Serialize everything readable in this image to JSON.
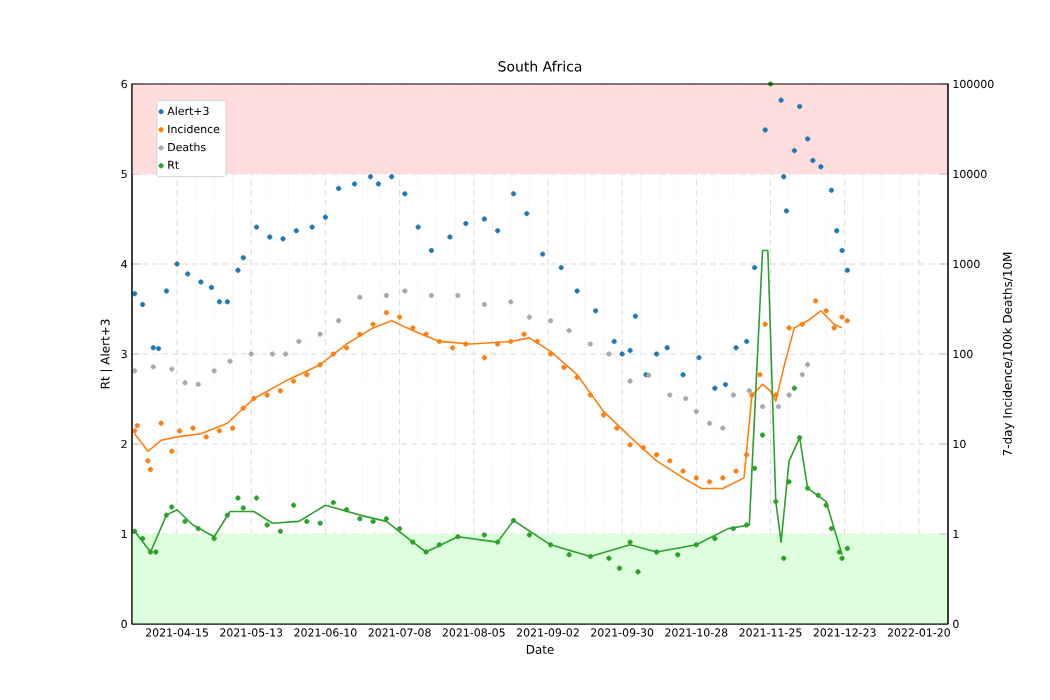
{
  "chart_data": {
    "type": "scatter",
    "title": "South Africa",
    "xlabel": "Date",
    "ylabel": "Rt | Alert+3",
    "y2label": "7-day Incidence/100k Deaths/10M",
    "xlim": [
      "2021-03-29",
      "2022-01-31"
    ],
    "xticks": [
      "2021-04-15",
      "2021-05-13",
      "2021-06-10",
      "2021-07-08",
      "2021-08-05",
      "2021-09-02",
      "2021-09-30",
      "2021-10-28",
      "2021-11-25",
      "2021-12-23",
      "2022-01-20"
    ],
    "ylim": [
      0,
      6
    ],
    "yticks": [
      0,
      1,
      2,
      3,
      4,
      5,
      6
    ],
    "y2lim": [
      0,
      100000
    ],
    "y2ticks": [
      0,
      1,
      10,
      100,
      1000,
      10000,
      100000
    ],
    "log": "y2",
    "grid": true,
    "legend": "top left",
    "bands": [
      {
        "axis": "y",
        "from": 5,
        "to": 6,
        "color": "#ffdddd"
      },
      {
        "axis": "y",
        "from": 0,
        "to": 1,
        "color": "#ddffdd"
      }
    ],
    "series": [
      {
        "name": "Alert+3",
        "marker": "circle",
        "color": "#1f77b4",
        "x": [
          "2021-03-30",
          "2021-04-02",
          "2021-04-06",
          "2021-04-08",
          "2021-04-11",
          "2021-04-15",
          "2021-04-19",
          "2021-04-24",
          "2021-04-28",
          "2021-05-01",
          "2021-05-04",
          "2021-05-08",
          "2021-05-10",
          "2021-05-15",
          "2021-05-20",
          "2021-05-25",
          "2021-05-30",
          "2021-06-05",
          "2021-06-10",
          "2021-06-15",
          "2021-06-21",
          "2021-06-27",
          "2021-06-30",
          "2021-07-05",
          "2021-07-10",
          "2021-07-15",
          "2021-07-20",
          "2021-07-27",
          "2021-08-02",
          "2021-08-09",
          "2021-08-14",
          "2021-08-20",
          "2021-08-25",
          "2021-08-31",
          "2021-09-07",
          "2021-09-13",
          "2021-09-20",
          "2021-09-27",
          "2021-09-30",
          "2021-10-03",
          "2021-10-05",
          "2021-10-09",
          "2021-10-13",
          "2021-10-17",
          "2021-10-23",
          "2021-10-29",
          "2021-11-04",
          "2021-11-08",
          "2021-11-12",
          "2021-11-16",
          "2021-11-19",
          "2021-11-23",
          "2021-11-29",
          "2021-11-30",
          "2021-12-01",
          "2021-12-04",
          "2021-12-06",
          "2021-12-09",
          "2021-12-11",
          "2021-12-14",
          "2021-12-18",
          "2021-12-20",
          "2021-12-22",
          "2021-12-24"
        ],
        "values": [
          3.67,
          3.55,
          3.07,
          3.06,
          3.7,
          4.0,
          3.89,
          3.8,
          3.74,
          3.58,
          3.58,
          3.93,
          4.07,
          4.41,
          4.3,
          4.28,
          4.37,
          4.41,
          4.52,
          4.84,
          4.89,
          4.97,
          4.89,
          4.97,
          4.78,
          4.41,
          4.15,
          4.3,
          4.45,
          4.5,
          4.37,
          4.78,
          4.56,
          4.11,
          3.96,
          3.7,
          3.48,
          3.14,
          3.0,
          3.04,
          3.42,
          2.77,
          3.0,
          3.07,
          2.77,
          2.96,
          2.62,
          2.66,
          3.07,
          3.14,
          3.96,
          5.49,
          5.82,
          4.97,
          4.59,
          5.26,
          5.75,
          5.39,
          5.15,
          5.08,
          4.82,
          4.37,
          4.15,
          3.93
        ]
      },
      {
        "name": "Incidence",
        "marker": "circle",
        "color": "#ff7f0e",
        "axis": "y2",
        "x": [
          "2021-03-30",
          "2021-03-31",
          "2021-04-04",
          "2021-04-05",
          "2021-04-09",
          "2021-04-13",
          "2021-04-16",
          "2021-04-21",
          "2021-04-26",
          "2021-05-01",
          "2021-05-06",
          "2021-05-10",
          "2021-05-14",
          "2021-05-19",
          "2021-05-24",
          "2021-05-29",
          "2021-06-03",
          "2021-06-08",
          "2021-06-13",
          "2021-06-18",
          "2021-06-23",
          "2021-06-28",
          "2021-07-03",
          "2021-07-08",
          "2021-07-13",
          "2021-07-18",
          "2021-07-23",
          "2021-07-28",
          "2021-08-02",
          "2021-08-09",
          "2021-08-14",
          "2021-08-19",
          "2021-08-24",
          "2021-08-29",
          "2021-09-03",
          "2021-09-08",
          "2021-09-13",
          "2021-09-18",
          "2021-09-23",
          "2021-09-28",
          "2021-10-03",
          "2021-10-08",
          "2021-10-13",
          "2021-10-18",
          "2021-10-23",
          "2021-10-28",
          "2021-11-02",
          "2021-11-07",
          "2021-11-12",
          "2021-11-16",
          "2021-11-18",
          "2021-11-21",
          "2021-11-23",
          "2021-11-27",
          "2021-12-02",
          "2021-12-07",
          "2021-12-12",
          "2021-12-16",
          "2021-12-19",
          "2021-12-22",
          "2021-12-24"
        ],
        "values": [
          14,
          16,
          6.5,
          5.2,
          17,
          8.3,
          14,
          15,
          12,
          14,
          15,
          25,
          32,
          35,
          39,
          50,
          59,
          76,
          100,
          117,
          166,
          214,
          288,
          257,
          195,
          166,
          138,
          117,
          129,
          91,
          129,
          138,
          166,
          138,
          100,
          71,
          55,
          35,
          21,
          15,
          9.8,
          9.1,
          7.6,
          6.5,
          5.0,
          4.2,
          3.8,
          4.2,
          5.0,
          7.6,
          35,
          59,
          214,
          35,
          195,
          214,
          389,
          302,
          195,
          257,
          234
        ]
      },
      {
        "name": "Deaths",
        "marker": "circle",
        "color": "#a9a9a9",
        "axis": "y2",
        "x": [
          "2021-03-30",
          "2021-04-06",
          "2021-04-13",
          "2021-04-18",
          "2021-04-23",
          "2021-04-29",
          "2021-05-05",
          "2021-05-13",
          "2021-05-21",
          "2021-05-26",
          "2021-05-31",
          "2021-06-08",
          "2021-06-15",
          "2021-06-23",
          "2021-07-03",
          "2021-07-10",
          "2021-07-20",
          "2021-07-30",
          "2021-08-09",
          "2021-08-19",
          "2021-08-26",
          "2021-09-03",
          "2021-09-10",
          "2021-09-18",
          "2021-09-25",
          "2021-10-03",
          "2021-10-10",
          "2021-10-18",
          "2021-10-24",
          "2021-10-28",
          "2021-11-02",
          "2021-11-07",
          "2021-11-11",
          "2021-11-17",
          "2021-11-22",
          "2021-11-28",
          "2021-12-02",
          "2021-12-07",
          "2021-12-09"
        ],
        "values": [
          65,
          72,
          68,
          48,
          46,
          65,
          83,
          100,
          100,
          100,
          138,
          166,
          234,
          427,
          447,
          501,
          447,
          447,
          355,
          380,
          257,
          234,
          182,
          129,
          100,
          50,
          58,
          35,
          32,
          23,
          17,
          15,
          35,
          39,
          26,
          26,
          35,
          59,
          76
        ]
      },
      {
        "name": "Rt",
        "marker": "circle",
        "color": "#2ca02c",
        "x": [
          "2021-03-30",
          "2021-04-02",
          "2021-04-05",
          "2021-04-07",
          "2021-04-11",
          "2021-04-13",
          "2021-04-18",
          "2021-04-23",
          "2021-04-29",
          "2021-05-04",
          "2021-05-08",
          "2021-05-10",
          "2021-05-15",
          "2021-05-19",
          "2021-05-24",
          "2021-05-29",
          "2021-06-03",
          "2021-06-08",
          "2021-06-13",
          "2021-06-18",
          "2021-06-23",
          "2021-06-28",
          "2021-07-03",
          "2021-07-08",
          "2021-07-13",
          "2021-07-18",
          "2021-07-23",
          "2021-07-30",
          "2021-08-09",
          "2021-08-14",
          "2021-08-20",
          "2021-08-26",
          "2021-09-03",
          "2021-09-10",
          "2021-09-18",
          "2021-09-25",
          "2021-09-29",
          "2021-10-03",
          "2021-10-06",
          "2021-10-13",
          "2021-10-21",
          "2021-10-28",
          "2021-11-04",
          "2021-11-11",
          "2021-11-16",
          "2021-11-19",
          "2021-11-22",
          "2021-11-25",
          "2021-11-27",
          "2021-11-30",
          "2021-12-02",
          "2021-12-04",
          "2021-12-06",
          "2021-12-09",
          "2021-12-13",
          "2021-12-16",
          "2021-12-18",
          "2021-12-21",
          "2021-12-22",
          "2021-12-24"
        ],
        "values": [
          1.03,
          0.95,
          0.8,
          0.8,
          1.21,
          1.3,
          1.14,
          1.06,
          0.95,
          1.21,
          1.4,
          1.29,
          1.4,
          1.1,
          1.03,
          1.32,
          1.14,
          1.12,
          1.35,
          1.27,
          1.17,
          1.14,
          1.17,
          1.06,
          0.91,
          0.8,
          0.88,
          0.97,
          0.99,
          0.91,
          1.15,
          0.99,
          0.88,
          0.77,
          0.75,
          0.73,
          0.62,
          0.91,
          0.58,
          0.8,
          0.77,
          0.88,
          0.95,
          1.06,
          1.1,
          1.73,
          2.1,
          6.0,
          1.36,
          0.73,
          1.58,
          2.62,
          2.07,
          1.51,
          1.43,
          1.32,
          1.06,
          0.8,
          0.73,
          0.84
        ]
      },
      {
        "type": "line",
        "marker": "none",
        "color": "#ff7f0e",
        "axis": "y2",
        "x": [
          "2021-03-30",
          "2021-04-04",
          "2021-04-09",
          "2021-04-15",
          "2021-04-24",
          "2021-05-04",
          "2021-05-14",
          "2021-05-26",
          "2021-06-08",
          "2021-06-18",
          "2021-06-28",
          "2021-07-05",
          "2021-07-13",
          "2021-07-23",
          "2021-08-04",
          "2021-08-19",
          "2021-08-26",
          "2021-09-03",
          "2021-09-13",
          "2021-09-23",
          "2021-10-03",
          "2021-10-13",
          "2021-10-23",
          "2021-10-30",
          "2021-11-07",
          "2021-11-15",
          "2021-11-18",
          "2021-11-22",
          "2021-11-25",
          "2021-11-27",
          "2021-11-30",
          "2021-12-04",
          "2021-12-09",
          "2021-12-14",
          "2021-12-19",
          "2021-12-22"
        ],
        "values": [
          13,
          8.3,
          11,
          12,
          13,
          17,
          32,
          50,
          76,
          129,
          195,
          234,
          182,
          138,
          129,
          138,
          151,
          107,
          59,
          23,
          12,
          6.5,
          4.2,
          3.2,
          3.2,
          4.2,
          35,
          46,
          39,
          30,
          71,
          195,
          234,
          302,
          214,
          195
        ]
      },
      {
        "type": "line",
        "marker": "none",
        "color": "#2ca02c",
        "x": [
          "2021-03-30",
          "2021-04-05",
          "2021-04-11",
          "2021-04-15",
          "2021-04-21",
          "2021-04-29",
          "2021-05-05",
          "2021-05-14",
          "2021-05-21",
          "2021-05-31",
          "2021-06-10",
          "2021-06-23",
          "2021-07-03",
          "2021-07-13",
          "2021-07-18",
          "2021-07-30",
          "2021-08-14",
          "2021-08-20",
          "2021-09-03",
          "2021-09-18",
          "2021-10-03",
          "2021-10-13",
          "2021-10-28",
          "2021-11-09",
          "2021-11-17",
          "2021-11-22",
          "2021-11-24",
          "2021-11-27",
          "2021-11-29",
          "2021-12-02",
          "2021-12-06",
          "2021-12-09",
          "2021-12-16",
          "2021-12-22"
        ],
        "values": [
          1.03,
          0.8,
          1.21,
          1.27,
          1.1,
          0.97,
          1.25,
          1.25,
          1.12,
          1.14,
          1.32,
          1.21,
          1.14,
          0.91,
          0.8,
          0.97,
          0.91,
          1.15,
          0.88,
          0.75,
          0.88,
          0.8,
          0.88,
          1.06,
          1.1,
          4.15,
          4.15,
          1.36,
          0.91,
          1.81,
          2.07,
          1.51,
          1.36,
          0.77
        ]
      }
    ]
  }
}
